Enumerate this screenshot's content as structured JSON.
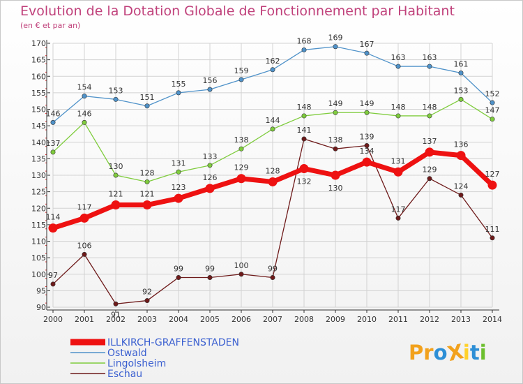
{
  "chart_data": {
    "type": "line",
    "title": "Evolution de la Dotation Globale de Fonctionnement par Habitant",
    "subtitle": "(en € et par an)",
    "xlabel": "",
    "ylabel": "",
    "categories": [
      "2000",
      "2001",
      "2002",
      "2003",
      "2004",
      "2005",
      "2006",
      "2007",
      "2008",
      "2009",
      "2010",
      "2011",
      "2012",
      "2013",
      "2014"
    ],
    "ylim": [
      90,
      170
    ],
    "yticks": [
      90,
      95,
      100,
      105,
      110,
      115,
      120,
      125,
      130,
      135,
      140,
      145,
      150,
      155,
      160,
      165,
      170
    ],
    "grid": true,
    "legend_position": "bottom-left",
    "series": [
      {
        "name": "ILLKIRCH-GRAFFENSTADEN",
        "color": "#ee1111",
        "highlight": true,
        "values": [
          114,
          117,
          121,
          121,
          123,
          126,
          129,
          128,
          132,
          130,
          134,
          131,
          137,
          136,
          127
        ]
      },
      {
        "name": "Ostwald",
        "color": "#4f92c9",
        "values": [
          146,
          154,
          153,
          151,
          155,
          156,
          159,
          162,
          168,
          169,
          167,
          163,
          163,
          161,
          152
        ]
      },
      {
        "name": "Lingolsheim",
        "color": "#7fcc3d",
        "values": [
          137,
          146,
          130,
          128,
          131,
          133,
          138,
          144,
          148,
          149,
          149,
          148,
          148,
          153,
          147
        ]
      },
      {
        "name": "Eschau",
        "color": "#6e1a1a",
        "values": [
          97,
          106,
          91,
          92,
          99,
          99,
          100,
          99,
          141,
          138,
          139,
          117,
          129,
          124,
          111
        ]
      }
    ]
  },
  "logo": {
    "text": "ProXiti",
    "letters": [
      "P",
      "r",
      "o",
      "X",
      "i",
      "t",
      "i"
    ],
    "colors": [
      "#f2a11c",
      "#f2a11c",
      "#2d8fd6",
      "#f2a11c",
      "#ffd12a",
      "#2d8fd6",
      "#6cbf2e"
    ]
  }
}
